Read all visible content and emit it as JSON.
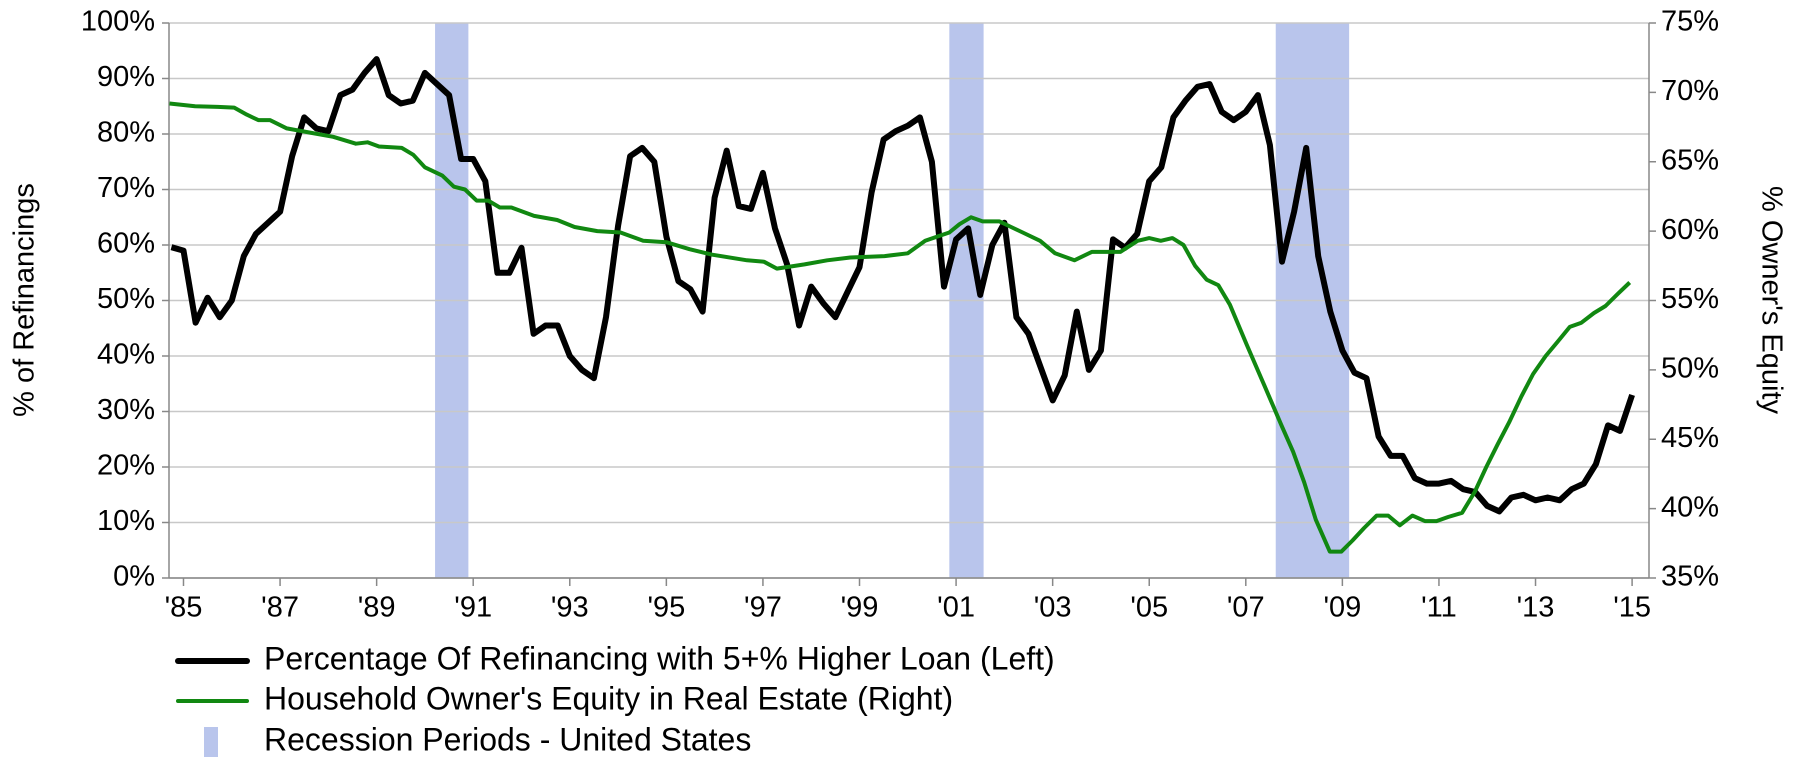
{
  "chart_data": {
    "type": "line",
    "y_label": "% of Refinancings",
    "y2_label": "% Owner's Equity",
    "xlim": [
      1984.7,
      2015.35
    ],
    "ylim": [
      0,
      100
    ],
    "y2lim": [
      35,
      75
    ],
    "xticks": [
      {
        "value": 1985,
        "label": "'85"
      },
      {
        "value": 1987,
        "label": "'87"
      },
      {
        "value": 1989,
        "label": "'89"
      },
      {
        "value": 1991,
        "label": "'91"
      },
      {
        "value": 1993,
        "label": "'93"
      },
      {
        "value": 1995,
        "label": "'95"
      },
      {
        "value": 1997,
        "label": "'97"
      },
      {
        "value": 1999,
        "label": "'99"
      },
      {
        "value": 2001,
        "label": "'01"
      },
      {
        "value": 2003,
        "label": "'03"
      },
      {
        "value": 2005,
        "label": "'05"
      },
      {
        "value": 2007,
        "label": "'07"
      },
      {
        "value": 2009,
        "label": "'09"
      },
      {
        "value": 2011,
        "label": "'11"
      },
      {
        "value": 2013,
        "label": "'13"
      },
      {
        "value": 2015,
        "label": "'15"
      }
    ],
    "yticks": [
      {
        "value": 0,
        "label": "0%"
      },
      {
        "value": 10,
        "label": "10%"
      },
      {
        "value": 20,
        "label": "20%"
      },
      {
        "value": 30,
        "label": "30%"
      },
      {
        "value": 40,
        "label": "40%"
      },
      {
        "value": 50,
        "label": "50%"
      },
      {
        "value": 60,
        "label": "60%"
      },
      {
        "value": 70,
        "label": "70%"
      },
      {
        "value": 80,
        "label": "80%"
      },
      {
        "value": 90,
        "label": "90%"
      },
      {
        "value": 100,
        "label": "100%"
      }
    ],
    "y2ticks": [
      {
        "value": 35,
        "label": "35%"
      },
      {
        "value": 40,
        "label": "40%"
      },
      {
        "value": 45,
        "label": "45%"
      },
      {
        "value": 50,
        "label": "50%"
      },
      {
        "value": 55,
        "label": "55%"
      },
      {
        "value": 60,
        "label": "60%"
      },
      {
        "value": 65,
        "label": "65%"
      },
      {
        "value": 70,
        "label": "70%"
      },
      {
        "value": 75,
        "label": "75%"
      }
    ],
    "grid": true,
    "recessions": {
      "name": "Recession Periods - United States",
      "color": "#b9c5ec",
      "periods": [
        [
          1990.21,
          1990.9
        ],
        [
          2000.86,
          2001.57
        ],
        [
          2007.62,
          2009.14
        ]
      ]
    },
    "series": [
      {
        "name": "Percentage Of Refinancing with 5+% Higher Loan (Left)",
        "color": "#000000",
        "axis": "y",
        "x": [
          1984.75,
          1985,
          1985.25,
          1985.5,
          1985.75,
          1986,
          1986.25,
          1986.5,
          1986.75,
          1987,
          1987.25,
          1987.5,
          1987.75,
          1988,
          1988.25,
          1988.5,
          1988.75,
          1989,
          1989.25,
          1989.5,
          1989.75,
          1990,
          1990.25,
          1990.5,
          1990.75,
          1991,
          1991.25,
          1991.5,
          1991.75,
          1992,
          1992.25,
          1992.5,
          1992.75,
          1993,
          1993.25,
          1993.5,
          1993.75,
          1994,
          1994.25,
          1994.5,
          1994.75,
          1995,
          1995.25,
          1995.5,
          1995.75,
          1996,
          1996.25,
          1996.5,
          1996.75,
          1997,
          1997.25,
          1997.5,
          1997.75,
          1998,
          1998.25,
          1998.5,
          1998.75,
          1999,
          1999.25,
          1999.5,
          1999.75,
          2000,
          2000.25,
          2000.5,
          2000.75,
          2001,
          2001.25,
          2001.5,
          2001.75,
          2002,
          2002.25,
          2002.5,
          2002.75,
          2003,
          2003.25,
          2003.5,
          2003.75,
          2004,
          2004.25,
          2004.5,
          2004.75,
          2005,
          2005.25,
          2005.5,
          2005.75,
          2006,
          2006.25,
          2006.5,
          2006.75,
          2007,
          2007.25,
          2007.5,
          2007.75,
          2008,
          2008.25,
          2008.5,
          2008.75,
          2009,
          2009.25,
          2009.5,
          2009.75,
          2010,
          2010.25,
          2010.5,
          2010.75,
          2011,
          2011.25,
          2011.5,
          2011.75,
          2012,
          2012.25,
          2012.5,
          2012.75,
          2013,
          2013.25,
          2013.5,
          2013.75,
          2014,
          2014.25,
          2014.5,
          2014.75,
          2015
        ],
        "values": [
          59.6,
          59,
          46,
          50.5,
          47,
          50,
          58,
          62,
          64,
          66,
          76,
          83,
          81,
          80.5,
          87,
          88,
          91,
          93.5,
          87,
          85.5,
          86,
          91,
          89,
          87,
          75.5,
          75.5,
          71.5,
          55,
          55,
          59.5,
          44,
          45.5,
          45.5,
          40,
          37.5,
          36,
          47,
          63.5,
          76,
          77.5,
          75,
          61.5,
          53.5,
          52,
          48,
          68.5,
          77,
          67,
          66.5,
          73,
          63,
          56.5,
          45.5,
          52.5,
          49.5,
          47,
          51.5,
          56,
          69.5,
          79,
          80.5,
          81.5,
          83,
          75,
          52.5,
          61,
          63,
          51,
          60,
          64,
          47,
          44,
          38,
          32,
          36.5,
          48,
          37.5,
          41,
          61,
          59.5,
          62,
          71.5,
          74,
          83,
          86,
          88.5,
          89,
          84,
          82.5,
          84,
          87,
          78,
          57,
          66,
          77.5,
          58,
          48,
          41,
          37,
          36,
          25.5,
          22,
          22,
          18,
          17,
          17,
          17.5,
          16,
          15.5,
          13,
          12,
          14.5,
          15,
          14,
          14.5,
          14,
          16,
          17,
          20.5,
          27.5,
          26.5,
          33
        ]
      },
      {
        "name": "Household Owner's Equity in Real Estate (Right)",
        "color": "#118811",
        "axis": "y2",
        "x": [
          1984.71,
          1985.24,
          1985.71,
          1986.05,
          1986.31,
          1986.55,
          1986.79,
          1987.14,
          1987.62,
          1988.1,
          1988.57,
          1988.81,
          1989.05,
          1989.52,
          1989.76,
          1990,
          1990.36,
          1990.6,
          1990.83,
          1991.07,
          1991.31,
          1991.55,
          1991.79,
          1992.26,
          1992.74,
          1993.1,
          1993.57,
          1994.05,
          1994.52,
          1995,
          1995.48,
          1995.95,
          1996.67,
          1997.02,
          1997.29,
          1997.86,
          1998.33,
          1998.81,
          1999.52,
          2000,
          2000.36,
          2000.6,
          2000.86,
          2001.07,
          2001.31,
          2001.55,
          2001.9,
          2002.14,
          2002.38,
          2002.74,
          2003.05,
          2003.45,
          2003.81,
          2004.4,
          2004.76,
          2005,
          2005.24,
          2005.48,
          2005.71,
          2005.95,
          2006.19,
          2006.43,
          2006.67,
          2007.02,
          2007.38,
          2007.74,
          2007.98,
          2008.21,
          2008.45,
          2008.74,
          2008.98,
          2009.21,
          2009.45,
          2009.71,
          2009.95,
          2010.19,
          2010.45,
          2010.71,
          2010.95,
          2011.19,
          2011.48,
          2011.74,
          2011.98,
          2012.21,
          2012.45,
          2012.71,
          2012.95,
          2013.21,
          2013.45,
          2013.71,
          2013.95,
          2014.21,
          2014.45,
          2014.71,
          2014.95
        ],
        "values": [
          69.2,
          69.0,
          68.95,
          68.9,
          68.4,
          68.0,
          68.0,
          67.4,
          67.1,
          66.8,
          66.3,
          66.4,
          66.1,
          66.0,
          65.5,
          64.6,
          64.0,
          63.2,
          63.0,
          62.2,
          62.2,
          61.7,
          61.7,
          61.1,
          60.8,
          60.3,
          60.0,
          59.9,
          59.3,
          59.2,
          58.7,
          58.3,
          57.9,
          57.8,
          57.3,
          57.6,
          57.9,
          58.1,
          58.2,
          58.4,
          59.3,
          59.6,
          59.9,
          60.5,
          61.0,
          60.7,
          60.7,
          60.3,
          59.9,
          59.3,
          58.4,
          57.9,
          58.5,
          58.5,
          59.3,
          59.5,
          59.3,
          59.5,
          59.0,
          57.5,
          56.5,
          56.1,
          54.7,
          51.8,
          48.9,
          46.0,
          44.1,
          41.9,
          39.2,
          36.9,
          36.9,
          37.7,
          38.6,
          39.5,
          39.5,
          38.8,
          39.5,
          39.1,
          39.1,
          39.4,
          39.7,
          41.2,
          43.0,
          44.6,
          46.2,
          48.1,
          49.7,
          51.0,
          52.0,
          53.1,
          53.4,
          54.1,
          54.6,
          55.5,
          56.3
        ]
      }
    ]
  }
}
